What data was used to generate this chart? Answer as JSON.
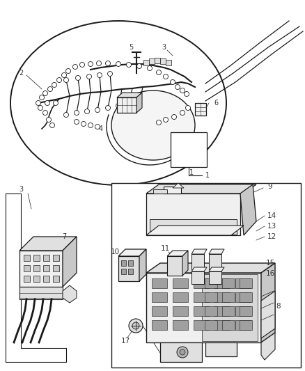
{
  "bg_color": "#ffffff",
  "line_color": "#1a1a1a",
  "gray1": "#f0f0f0",
  "gray2": "#e0e0e0",
  "gray3": "#c8c8c8",
  "gray4": "#a0a0a0",
  "figsize": [
    4.38,
    5.33
  ],
  "dpi": 100
}
